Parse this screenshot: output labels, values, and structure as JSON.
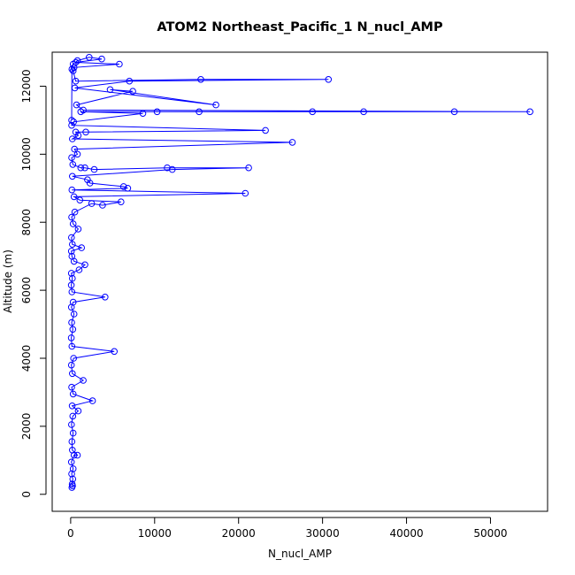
{
  "chart_data": {
    "type": "scatter",
    "title": "ATOM2 Northeast_Pacific_1 N_nucl_AMP",
    "xlabel": "N_nucl_AMP",
    "ylabel": "Altitude (m)",
    "xlim": [
      -2200,
      56800
    ],
    "ylim": [
      -500,
      13000
    ],
    "xticks": [
      0,
      10000,
      20000,
      30000,
      40000,
      50000
    ],
    "xtick_labels": [
      "0",
      "10000",
      "20000",
      "30000",
      "40000",
      "50000"
    ],
    "yticks": [
      0,
      2000,
      4000,
      6000,
      8000,
      10000,
      12000
    ],
    "ytick_labels": [
      "0",
      "2000",
      "4000",
      "6000",
      "8000",
      "10000",
      "12000"
    ],
    "grid": false,
    "legend": "none",
    "plot_style": "points-connected-by-lines",
    "series": [
      {
        "color": "#0000ff",
        "points": [
          [
            150,
            200
          ],
          [
            220,
            250
          ],
          [
            180,
            300
          ],
          [
            250,
            450
          ],
          [
            120,
            600
          ],
          [
            300,
            750
          ],
          [
            90,
            950
          ],
          [
            400,
            1150
          ],
          [
            800,
            1150
          ],
          [
            200,
            1300
          ],
          [
            150,
            1550
          ],
          [
            300,
            1800
          ],
          [
            100,
            2050
          ],
          [
            250,
            2300
          ],
          [
            900,
            2450
          ],
          [
            180,
            2600
          ],
          [
            2600,
            2750
          ],
          [
            300,
            2950
          ],
          [
            120,
            3150
          ],
          [
            1500,
            3350
          ],
          [
            200,
            3550
          ],
          [
            90,
            3800
          ],
          [
            350,
            4000
          ],
          [
            5200,
            4200
          ],
          [
            150,
            4350
          ],
          [
            80,
            4600
          ],
          [
            250,
            4850
          ],
          [
            120,
            5050
          ],
          [
            400,
            5300
          ],
          [
            90,
            5500
          ],
          [
            300,
            5650
          ],
          [
            4100,
            5800
          ],
          [
            150,
            5950
          ],
          [
            80,
            6150
          ],
          [
            200,
            6350
          ],
          [
            90,
            6500
          ],
          [
            1000,
            6600
          ],
          [
            1700,
            6750
          ],
          [
            400,
            6850
          ],
          [
            150,
            7000
          ],
          [
            90,
            7150
          ],
          [
            1300,
            7250
          ],
          [
            200,
            7350
          ],
          [
            100,
            7550
          ],
          [
            900,
            7800
          ],
          [
            300,
            7950
          ],
          [
            120,
            8150
          ],
          [
            500,
            8300
          ],
          [
            2500,
            8550
          ],
          [
            3800,
            8500
          ],
          [
            6000,
            8600
          ],
          [
            1100,
            8650
          ],
          [
            400,
            8750
          ],
          [
            20800,
            8850
          ],
          [
            150,
            8950
          ],
          [
            6800,
            9000
          ],
          [
            6300,
            9050
          ],
          [
            2300,
            9150
          ],
          [
            2000,
            9250
          ],
          [
            200,
            9350
          ],
          [
            12100,
            9550
          ],
          [
            21200,
            9600
          ],
          [
            11500,
            9600
          ],
          [
            2800,
            9550
          ],
          [
            1700,
            9600
          ],
          [
            1200,
            9600
          ],
          [
            250,
            9700
          ],
          [
            120,
            9900
          ],
          [
            800,
            10000
          ],
          [
            450,
            10150
          ],
          [
            26400,
            10350
          ],
          [
            200,
            10450
          ],
          [
            900,
            10550
          ],
          [
            600,
            10650
          ],
          [
            1800,
            10650
          ],
          [
            23200,
            10700
          ],
          [
            120,
            10850
          ],
          [
            350,
            10950
          ],
          [
            8600,
            11200
          ],
          [
            1200,
            11250
          ],
          [
            10300,
            11250
          ],
          [
            15300,
            11250
          ],
          [
            28800,
            11250
          ],
          [
            34900,
            11250
          ],
          [
            45700,
            11250
          ],
          [
            54700,
            11250
          ],
          [
            1500,
            11300
          ],
          [
            700,
            11450
          ],
          [
            7400,
            11850
          ],
          [
            4700,
            11900
          ],
          [
            17300,
            11450
          ],
          [
            500,
            11950
          ],
          [
            7000,
            12150
          ],
          [
            30700,
            12200
          ],
          [
            15500,
            12200
          ],
          [
            600,
            12150
          ],
          [
            300,
            12450
          ],
          [
            400,
            12550
          ],
          [
            5800,
            12650
          ],
          [
            600,
            12700
          ],
          [
            3700,
            12800
          ],
          [
            2200,
            12850
          ],
          [
            800,
            12750
          ],
          [
            300,
            12650
          ],
          [
            150,
            12500
          ],
          [
            120,
            11000
          ]
        ]
      }
    ]
  }
}
